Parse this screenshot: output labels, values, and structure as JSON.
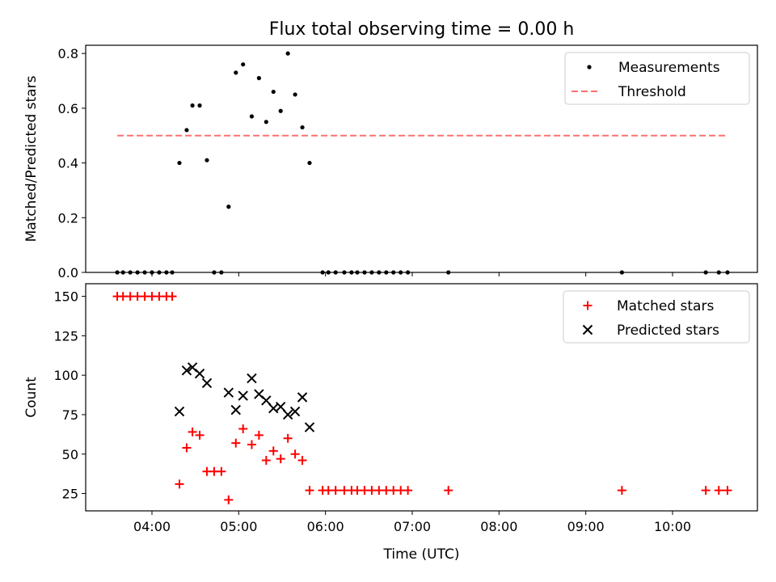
{
  "chart_data": [
    {
      "type": "scatter",
      "title": "Flux total observing time = 0.00 h",
      "xlabel": "",
      "ylabel": "Matched/Predicted stars",
      "x_ticks": [
        "04:00",
        "05:00",
        "06:00",
        "07:00",
        "08:00",
        "09:00",
        "10:00"
      ],
      "x_tick_labels_visible": false,
      "ylim": [
        0,
        0.83
      ],
      "yticks": [
        "0.0",
        "0.2",
        "0.4",
        "0.6",
        "0.8"
      ],
      "legend_position": "top-right",
      "series": [
        {
          "name": "Measurements",
          "marker": "dot",
          "color": "#000000",
          "points": [
            [
              "03:36",
              0.0
            ],
            [
              "03:40",
              0.0
            ],
            [
              "03:45",
              0.0
            ],
            [
              "03:50",
              0.0
            ],
            [
              "03:55",
              0.0
            ],
            [
              "04:00",
              0.0
            ],
            [
              "04:05",
              0.0
            ],
            [
              "04:10",
              0.0
            ],
            [
              "04:14",
              0.0
            ],
            [
              "04:19",
              0.4
            ],
            [
              "04:24",
              0.52
            ],
            [
              "04:28",
              0.61
            ],
            [
              "04:33",
              0.61
            ],
            [
              "04:38",
              0.41
            ],
            [
              "04:43",
              0.0
            ],
            [
              "04:48",
              0.0
            ],
            [
              "04:53",
              0.24
            ],
            [
              "04:58",
              0.73
            ],
            [
              "05:03",
              0.76
            ],
            [
              "05:09",
              0.57
            ],
            [
              "05:14",
              0.71
            ],
            [
              "05:19",
              0.55
            ],
            [
              "05:24",
              0.66
            ],
            [
              "05:29",
              0.59
            ],
            [
              "05:34",
              0.8
            ],
            [
              "05:39",
              0.65
            ],
            [
              "05:44",
              0.53
            ],
            [
              "05:49",
              0.4
            ],
            [
              "05:58",
              0.0
            ],
            [
              "06:02",
              0.0
            ],
            [
              "06:07",
              0.0
            ],
            [
              "06:13",
              0.0
            ],
            [
              "06:18",
              0.0
            ],
            [
              "06:22",
              0.0
            ],
            [
              "06:27",
              0.0
            ],
            [
              "06:32",
              0.0
            ],
            [
              "06:37",
              0.0
            ],
            [
              "06:42",
              0.0
            ],
            [
              "06:47",
              0.0
            ],
            [
              "06:52",
              0.0
            ],
            [
              "06:57",
              0.0
            ],
            [
              "07:25",
              0.0
            ],
            [
              "09:25",
              0.0
            ],
            [
              "10:23",
              0.0
            ],
            [
              "10:32",
              0.0
            ],
            [
              "10:38",
              0.0
            ]
          ]
        },
        {
          "name": "Threshold",
          "type": "line",
          "style": "dashed",
          "color": "#ff7070",
          "points": [
            [
              "03:36",
              0.5
            ],
            [
              "10:38",
              0.5
            ]
          ]
        }
      ]
    },
    {
      "type": "scatter",
      "title": "",
      "xlabel": "Time (UTC)",
      "ylabel": "Count",
      "x_ticks": [
        "04:00",
        "05:00",
        "06:00",
        "07:00",
        "08:00",
        "09:00",
        "10:00"
      ],
      "ylim": [
        14,
        158
      ],
      "yticks": [
        "25",
        "50",
        "75",
        "100",
        "125",
        "150"
      ],
      "legend_position": "top-right",
      "series": [
        {
          "name": "Matched stars",
          "marker": "plus",
          "color": "#ff0000",
          "points": [
            [
              "03:36",
              150
            ],
            [
              "03:40",
              150
            ],
            [
              "03:45",
              150
            ],
            [
              "03:50",
              150
            ],
            [
              "03:55",
              150
            ],
            [
              "04:00",
              150
            ],
            [
              "04:05",
              150
            ],
            [
              "04:10",
              150
            ],
            [
              "04:14",
              150
            ],
            [
              "04:19",
              31
            ],
            [
              "04:24",
              54
            ],
            [
              "04:28",
              64
            ],
            [
              "04:33",
              62
            ],
            [
              "04:38",
              39
            ],
            [
              "04:43",
              39
            ],
            [
              "04:48",
              39
            ],
            [
              "04:53",
              21
            ],
            [
              "04:58",
              57
            ],
            [
              "05:03",
              66
            ],
            [
              "05:09",
              56
            ],
            [
              "05:14",
              62
            ],
            [
              "05:19",
              46
            ],
            [
              "05:24",
              52
            ],
            [
              "05:29",
              47
            ],
            [
              "05:34",
              60
            ],
            [
              "05:39",
              50
            ],
            [
              "05:44",
              46
            ],
            [
              "05:49",
              27
            ],
            [
              "05:58",
              27
            ],
            [
              "06:02",
              27
            ],
            [
              "06:07",
              27
            ],
            [
              "06:13",
              27
            ],
            [
              "06:18",
              27
            ],
            [
              "06:22",
              27
            ],
            [
              "06:27",
              27
            ],
            [
              "06:32",
              27
            ],
            [
              "06:37",
              27
            ],
            [
              "06:42",
              27
            ],
            [
              "06:47",
              27
            ],
            [
              "06:52",
              27
            ],
            [
              "06:57",
              27
            ],
            [
              "07:25",
              27
            ],
            [
              "09:25",
              27
            ],
            [
              "10:23",
              27
            ],
            [
              "10:32",
              27
            ],
            [
              "10:38",
              27
            ]
          ]
        },
        {
          "name": "Predicted stars",
          "marker": "x",
          "color": "#000000",
          "points": [
            [
              "04:19",
              77
            ],
            [
              "04:24",
              103
            ],
            [
              "04:28",
              105
            ],
            [
              "04:33",
              101
            ],
            [
              "04:38",
              95
            ],
            [
              "04:53",
              89
            ],
            [
              "04:58",
              78
            ],
            [
              "05:03",
              87
            ],
            [
              "05:09",
              98
            ],
            [
              "05:14",
              88
            ],
            [
              "05:19",
              84
            ],
            [
              "05:24",
              79
            ],
            [
              "05:29",
              80
            ],
            [
              "05:34",
              75
            ],
            [
              "05:39",
              77
            ],
            [
              "05:44",
              86
            ],
            [
              "05:49",
              67
            ]
          ]
        }
      ]
    }
  ]
}
